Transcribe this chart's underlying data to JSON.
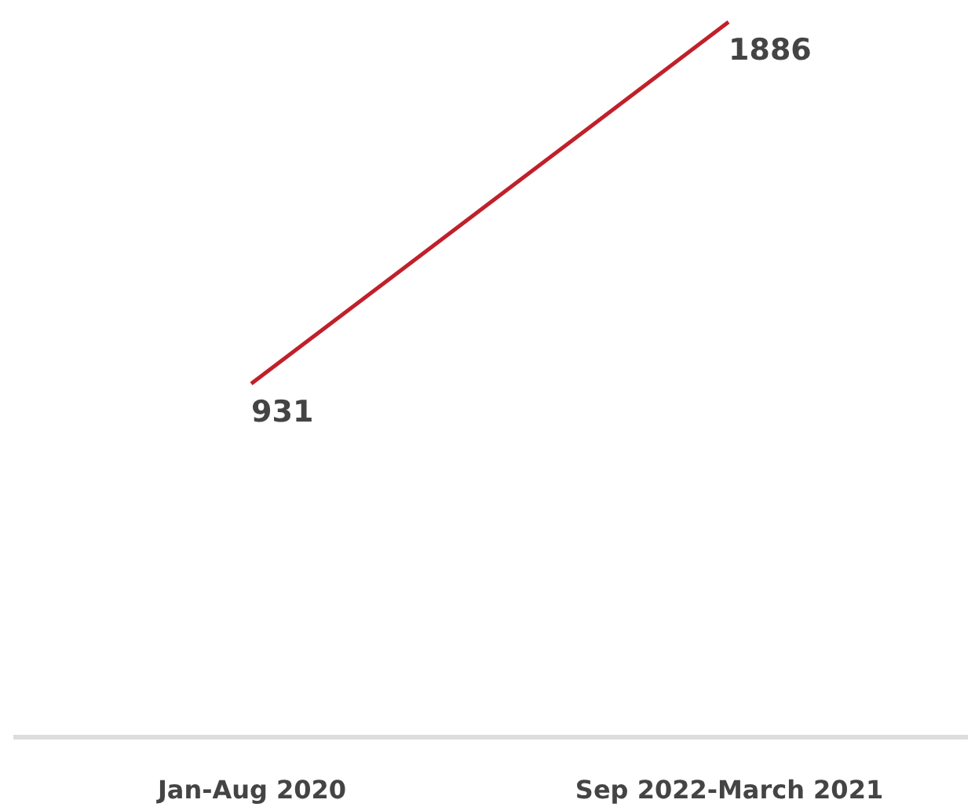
{
  "chart_data": {
    "type": "line",
    "categories": [
      "Jan-Aug 2020",
      "Sep 2022-March 2021"
    ],
    "series": [
      {
        "color": "#c0202a",
        "values": [
          931,
          1886
        ]
      }
    ],
    "data_labels": true,
    "grid": false,
    "legend": false,
    "marker": "none",
    "line_style": "solid"
  }
}
